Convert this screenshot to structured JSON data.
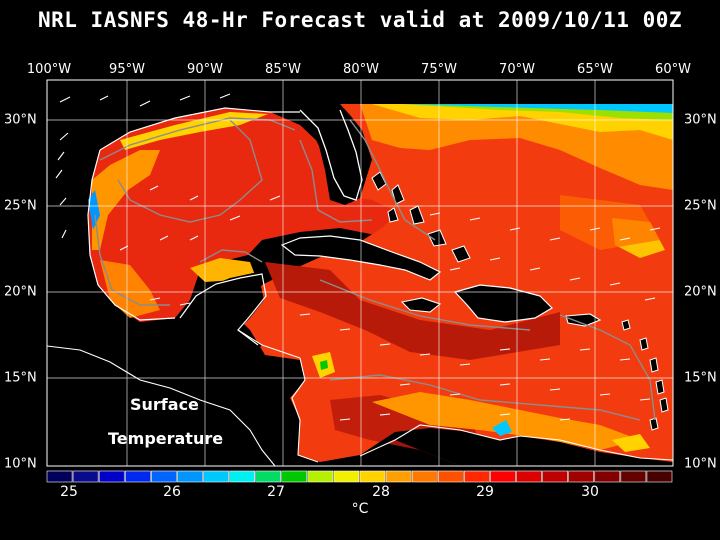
{
  "title": "NRL IASNFS  48-Hr Forecast valid at 2009/10/11 00Z",
  "overlay_label_line1": "Surface",
  "overlay_label_line2": "Temperature",
  "longitude_labels": [
    "100°W",
    "95°W",
    "90°W",
    "85°W",
    "80°W",
    "75°W",
    "70°W",
    "65°W",
    "60°W"
  ],
  "latitude_labels": [
    "30°N",
    "25°N",
    "20°N",
    "15°N",
    "10°N"
  ],
  "colorbar": {
    "ticks": [
      "25",
      "26",
      "27",
      "28",
      "29",
      "30"
    ],
    "unit": "°C",
    "colors": [
      "#00005a",
      "#0a0a8c",
      "#0000c8",
      "#0028f0",
      "#0064ff",
      "#0096ff",
      "#00c8ff",
      "#00f0f0",
      "#00dc64",
      "#00c800",
      "#b4f000",
      "#f0f000",
      "#ffd200",
      "#ffa000",
      "#ff7800",
      "#ff5000",
      "#ff2800",
      "#ff0000",
      "#dc0000",
      "#be0000",
      "#a00000",
      "#820000",
      "#640000",
      "#460000"
    ]
  },
  "map_colors": {
    "land": "#000000",
    "coast": "#ffffff",
    "gulf_sst": "#e8280f",
    "atlantic_sst": "#f23c0f",
    "caribbean_warm": "#b81a0a",
    "north_cool": "#ffd200",
    "shelf_cool": "#00c8ff",
    "bathymetry": "#8c8c8c",
    "gridline": "#ffffff"
  }
}
